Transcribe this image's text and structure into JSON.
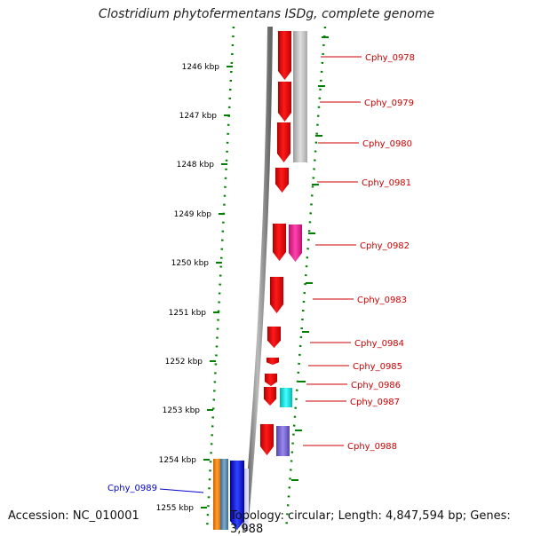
{
  "title": "Clostridium phytofermentans ISDg, complete genome",
  "footer": {
    "accession": "Accession: NC_010001",
    "topology": "Topology: circular; Length: 4,847,594 bp; Genes: 3,988"
  },
  "colors": {
    "tick": "#008000",
    "gene_label": "#cc0000",
    "gene_label_left": "#0000cc",
    "backbone": "#808080",
    "red_gene": "#ff0000",
    "grey_gene": "#b8b8b8",
    "pink_gene": "#ee2299",
    "cyan_gene": "#00dddd",
    "purple_gene": "#7766cc",
    "orange_gene": "#ff8800",
    "steel_gene": "#5588aa",
    "blue_gene": "#0000ee"
  },
  "scale": {
    "unit": "kbp",
    "labels": [
      "1246 kbp",
      "1247 kbp",
      "1248 kbp",
      "1249 kbp",
      "1250 kbp",
      "1251 kbp",
      "1252 kbp",
      "1253 kbp",
      "1254 kbp",
      "1255 kbp"
    ]
  },
  "genes": [
    {
      "label": "Cphy_0978",
      "side": "right",
      "color_key": "red_gene"
    },
    {
      "label": "Cphy_0979",
      "side": "right",
      "color_key": "red_gene"
    },
    {
      "label": "Cphy_0980",
      "side": "right",
      "color_key": "red_gene"
    },
    {
      "label": "Cphy_0981",
      "side": "right",
      "color_key": "red_gene"
    },
    {
      "label": "Cphy_0982",
      "side": "right",
      "color_key": "red_gene"
    },
    {
      "label": "Cphy_0983",
      "side": "right",
      "color_key": "red_gene"
    },
    {
      "label": "Cphy_0984",
      "side": "right",
      "color_key": "red_gene"
    },
    {
      "label": "Cphy_0985",
      "side": "right",
      "color_key": "red_gene"
    },
    {
      "label": "Cphy_0986",
      "side": "right",
      "color_key": "red_gene"
    },
    {
      "label": "Cphy_0987",
      "side": "right",
      "color_key": "red_gene"
    },
    {
      "label": "Cphy_0988",
      "side": "right",
      "color_key": "red_gene"
    },
    {
      "label": "Cphy_0989",
      "side": "left",
      "color_key": "blue_gene"
    }
  ]
}
